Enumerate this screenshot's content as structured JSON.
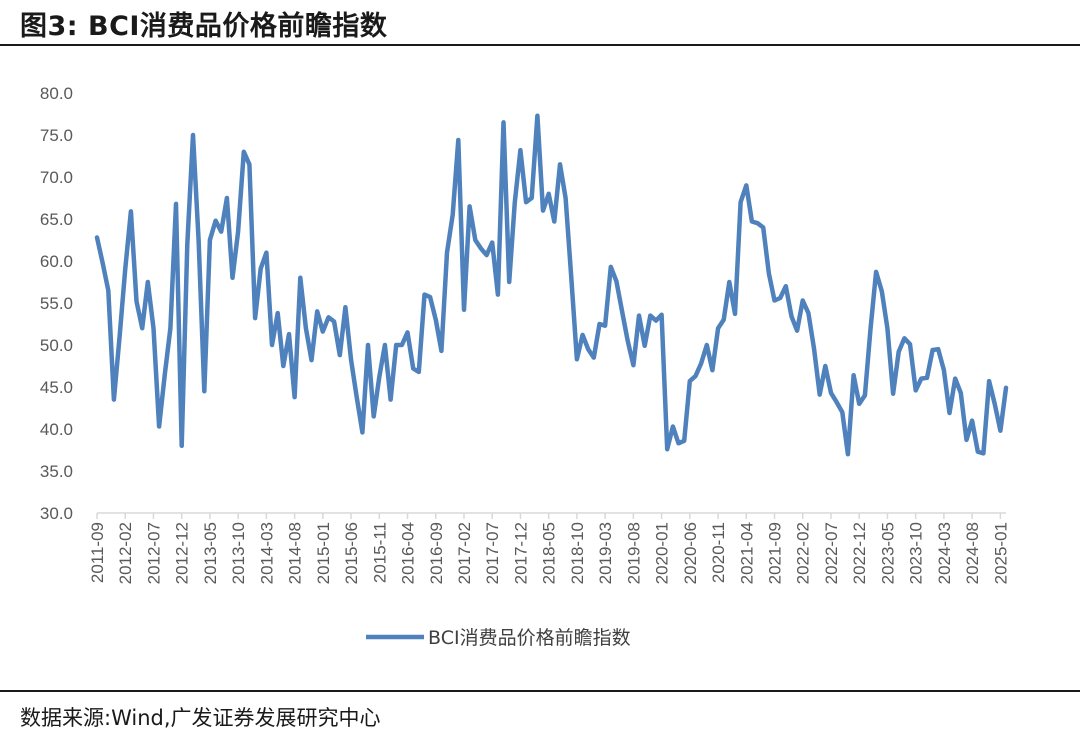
{
  "header": {
    "title": "图3:  BCI消费品价格前瞻指数"
  },
  "footer": {
    "source": "数据来源:Wind,广发证券发展研究中心"
  },
  "colors": {
    "series": "#4F81BD",
    "axis": "#D9D9D9",
    "text": "#595959"
  },
  "chart_data": {
    "type": "line",
    "title": "",
    "xlabel": "",
    "ylabel": "",
    "ylim": [
      30,
      80
    ],
    "yticks": [
      "30.0",
      "35.0",
      "40.0",
      "45.0",
      "50.0",
      "55.0",
      "60.0",
      "65.0",
      "70.0",
      "75.0",
      "80.0"
    ],
    "xticks": [
      "2011-09",
      "2012-02",
      "2012-07",
      "2012-12",
      "2013-05",
      "2013-10",
      "2014-03",
      "2014-08",
      "2015-01",
      "2015-06",
      "2015-11",
      "2016-04",
      "2016-09",
      "2017-02",
      "2017-07",
      "2017-12",
      "2018-05",
      "2018-10",
      "2019-03",
      "2019-08",
      "2020-01",
      "2020-06",
      "2020-11",
      "2021-04",
      "2021-09",
      "2022-02",
      "2022-07",
      "2022-12",
      "2023-05",
      "2023-10",
      "2024-03",
      "2024-08",
      "2025-01"
    ],
    "grid": false,
    "legend": "bottom",
    "x_start": "2011-09",
    "x_end": "2025-02",
    "series": [
      {
        "name": "BCI消费品价格前瞻指数",
        "values": [
          62.8,
          59.8,
          56.5,
          43.5,
          51,
          59,
          65.9,
          55.2,
          52,
          57.5,
          52,
          40.3,
          46.5,
          52,
          66.8,
          38,
          62,
          75,
          62.5,
          44.5,
          62.5,
          64.8,
          63.5,
          67.5,
          58,
          63.5,
          73,
          71.5,
          53.2,
          59.1,
          61,
          50,
          53.8,
          47.5,
          51.3,
          43.8,
          58,
          52,
          48.2,
          54,
          51.6,
          53.3,
          52.8,
          48.8,
          54.5,
          48.2,
          43.8,
          39.6,
          50,
          41.5,
          46.2,
          50,
          43.5,
          50,
          50,
          51.5,
          47.2,
          46.8,
          56,
          55.7,
          53,
          49.3,
          61,
          65.5,
          74.4,
          54.2,
          66.5,
          62.5,
          61.5,
          60.7,
          62.2,
          56,
          76.5,
          57.5,
          67,
          73.2,
          67,
          67.5,
          77.3,
          66,
          68,
          64.7,
          71.5,
          67.5,
          58,
          48.3,
          51.2,
          49.5,
          48.5,
          52.5,
          52.3,
          59.3,
          57.6,
          54,
          50.5,
          47.6,
          53.5,
          49.9,
          53.5,
          52.9,
          53.6,
          37.6,
          40.3,
          38.3,
          38.6,
          45.7,
          46.3,
          47.8,
          50,
          47,
          52,
          53,
          57.5,
          53.7,
          67,
          69,
          64.7,
          64.5,
          64,
          58.5,
          55.3,
          55.6,
          57,
          53.4,
          51.7,
          55.3,
          53.8,
          49.6,
          44.1,
          47.5,
          44.3,
          43.2,
          42,
          37,
          46.4,
          43,
          44,
          51.9,
          58.7,
          56.4,
          52,
          44.2,
          49.2,
          50.8,
          50.1,
          44.6,
          46,
          46.1,
          49.4,
          49.5,
          47,
          41.9,
          46,
          44.3,
          38.7,
          41,
          37.3,
          37.1,
          45.7,
          43,
          39.8,
          44.9
        ]
      }
    ]
  }
}
